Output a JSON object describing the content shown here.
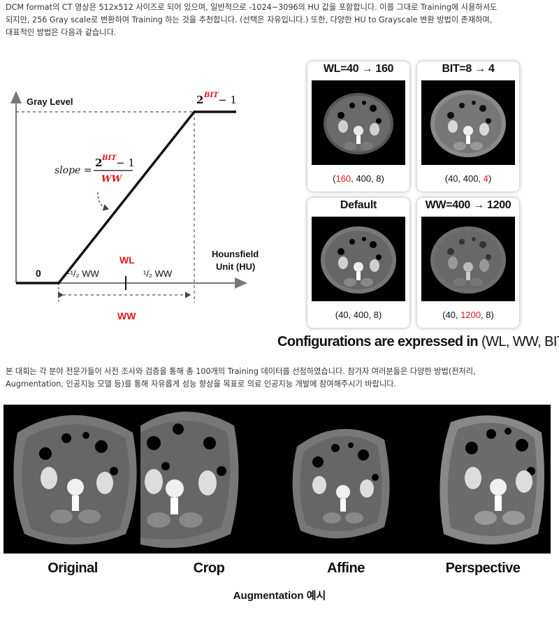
{
  "intro": {
    "lines": [
      "DCM format의 CT 영상은 512x512 사이즈로 되어 있으며, 일반적으로 -1024~3096의 HU 값을 포함합니다. 이를 그대로 Training에 사용하셔도",
      "되지만, 256 Gray scale로 변환하여 Training 하는 것을 추천합니다. (선택은 자유입니다.) 또한, 다양한 HU to Grayscale 변환 방법이 존재하며,",
      "대표적인 방법은 다음과 같습니다."
    ]
  },
  "diagram": {
    "y_axis_label": "Gray Level",
    "x_axis_label_1": "Hounsfield",
    "x_axis_label_2": "Unit (HU)",
    "top_value_base": "2",
    "top_value_exp": "BIT",
    "top_value_rest": " − 1",
    "slope_label": "slope =",
    "slope_num_base": "2",
    "slope_num_exp": "BIT",
    "slope_num_rest": " − 1",
    "slope_den": "WW",
    "zero": "0",
    "wl": "WL",
    "left_half": "−¹/₂ WW",
    "right_half": "¹/₂ WW",
    "ww": "WW",
    "accent_color": "#e0161b"
  },
  "configs": [
    {
      "title": "WL=40 → 160",
      "cap_a": "(",
      "cap_hl": "160",
      "cap_b": ", 400, 8)"
    },
    {
      "title": "BIT=8 → 4",
      "cap_a": "(40, 400, ",
      "cap_hl": "4",
      "cap_b": ")"
    },
    {
      "title": "Default",
      "cap_a": "(40, 400, 8)",
      "cap_hl": "",
      "cap_b": ""
    },
    {
      "title": "WW=400 → 1200",
      "cap_a": "(40, ",
      "cap_hl": "1200",
      "cap_b": ", 8)"
    }
  ],
  "config_note": {
    "bold": "Configurations are expressed in",
    "paren": " (WL, WW, BIT)"
  },
  "body2": {
    "lines": [
      "본 대회는 각 분야 전문가들이 사전 조사와 검증을 통해 총 100개의 Training 데이터를 선정하였습니다. 참가자 여러분들은 다양한 방법(전처리,",
      "Augmentation, 인공지능 모델 등)를 통해 자유롭게 성능 향상을 목표로 의료 인공지능 개발에 참여해주시기 바랍니다."
    ]
  },
  "augmentation": {
    "labels": [
      "Original",
      "Crop",
      "Affine",
      "Perspective"
    ],
    "caption": "Augmentation 예시"
  }
}
